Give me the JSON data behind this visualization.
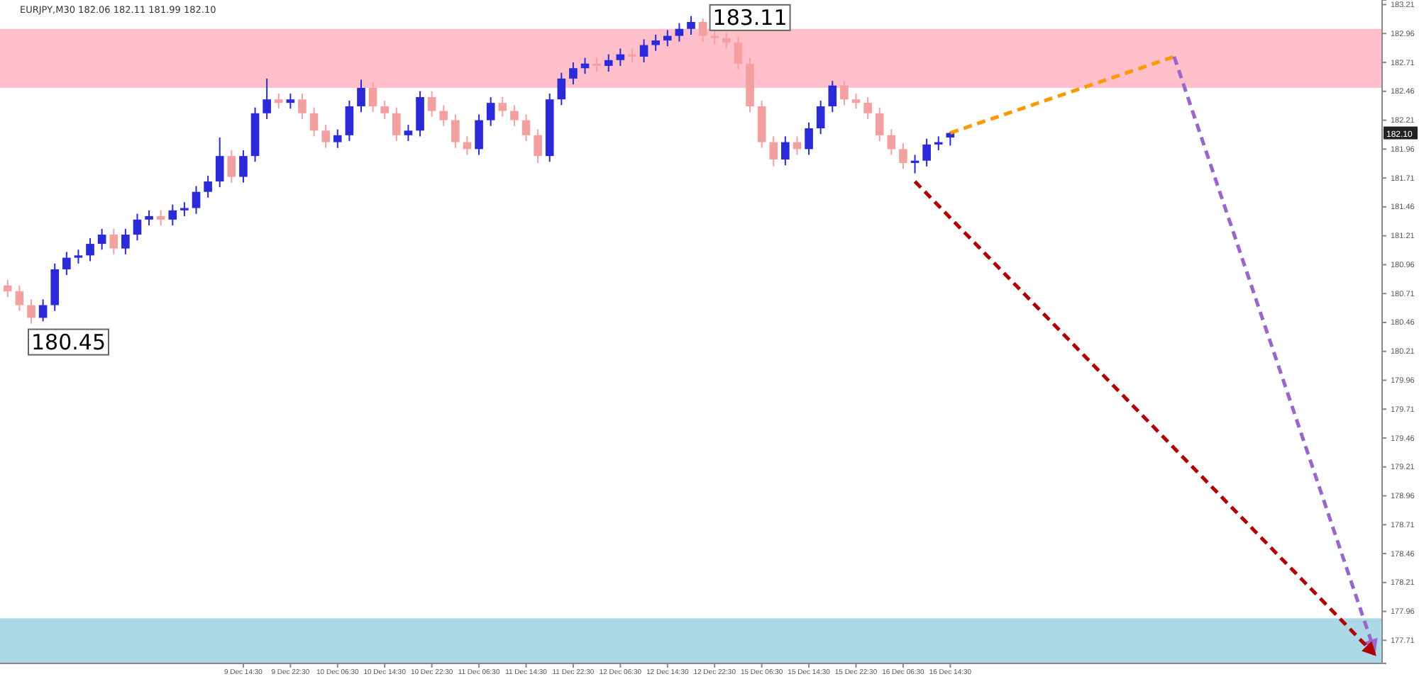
{
  "chart_data": {
    "type": "candlestick",
    "title": "EURJPY,M30  182.06 182.11 181.99 182.10",
    "categories": [
      null,
      null,
      null,
      null,
      null,
      null,
      null,
      null,
      null,
      null,
      null,
      null,
      null,
      null,
      null,
      null,
      null,
      null,
      null,
      null,
      "9 Dec 14:30",
      null,
      null,
      null,
      "9 Dec 22:30",
      null,
      null,
      null,
      "10 Dec 06:30",
      null,
      null,
      null,
      "10 Dec 14:30",
      null,
      null,
      null,
      "10 Dec 22:30",
      null,
      null,
      null,
      "11 Dec 06:30",
      null,
      null,
      null,
      "11 Dec 14:30",
      null,
      null,
      null,
      "11 Dec 22:30",
      null,
      null,
      null,
      "12 Dec 06:30",
      null,
      null,
      null,
      "12 Dec 14:30",
      null,
      null,
      null,
      "12 Dec 22:30",
      null,
      null,
      null,
      "15 Dec 06:30",
      null,
      null,
      null,
      "15 Dec 14:30",
      null,
      null,
      null,
      "15 Dec 22:30",
      null,
      null,
      null,
      "16 Dec 06:30",
      null,
      null,
      null,
      "16 Dec 14:30",
      null,
      null,
      null,
      null,
      null,
      null,
      null,
      null,
      null,
      null,
      null,
      null,
      null,
      null,
      null,
      null,
      null,
      null,
      null,
      null,
      null,
      null,
      null,
      null,
      null,
      null,
      null,
      null,
      null,
      null,
      null,
      null,
      null,
      null,
      null,
      null
    ],
    "ohlc": [
      [
        180.78,
        180.83,
        180.68,
        180.73
      ],
      [
        180.73,
        180.78,
        180.56,
        180.61
      ],
      [
        180.61,
        180.66,
        180.45,
        180.5
      ],
      [
        180.5,
        180.66,
        180.47,
        180.61
      ],
      [
        180.61,
        180.97,
        180.56,
        180.92
      ],
      [
        180.92,
        181.07,
        180.87,
        181.02
      ],
      [
        181.02,
        181.09,
        180.97,
        181.04
      ],
      [
        181.04,
        181.19,
        180.99,
        181.14
      ],
      [
        181.14,
        181.27,
        181.09,
        181.22
      ],
      [
        181.22,
        181.27,
        181.05,
        181.1
      ],
      [
        181.1,
        181.27,
        181.05,
        181.22
      ],
      [
        181.22,
        181.4,
        181.17,
        181.35
      ],
      [
        181.35,
        181.43,
        181.3,
        181.38
      ],
      [
        181.38,
        181.43,
        181.3,
        181.35
      ],
      [
        181.35,
        181.48,
        181.3,
        181.43
      ],
      [
        181.43,
        181.5,
        181.38,
        181.45
      ],
      [
        181.45,
        181.64,
        181.4,
        181.59
      ],
      [
        181.59,
        181.73,
        181.54,
        181.68
      ],
      [
        181.68,
        182.06,
        181.63,
        181.9
      ],
      [
        181.9,
        181.95,
        181.67,
        181.72
      ],
      [
        181.72,
        181.95,
        181.67,
        181.9
      ],
      [
        181.9,
        182.32,
        181.85,
        182.27
      ],
      [
        182.27,
        182.57,
        182.22,
        182.39
      ],
      [
        182.39,
        182.44,
        182.31,
        182.36
      ],
      [
        182.36,
        182.44,
        182.31,
        182.39
      ],
      [
        182.39,
        182.44,
        182.22,
        182.27
      ],
      [
        182.27,
        182.32,
        182.07,
        182.12
      ],
      [
        182.12,
        182.17,
        181.97,
        182.02
      ],
      [
        182.02,
        182.13,
        181.97,
        182.08
      ],
      [
        182.08,
        182.38,
        182.03,
        182.33
      ],
      [
        182.33,
        182.56,
        182.28,
        182.49
      ],
      [
        182.49,
        182.54,
        182.28,
        182.33
      ],
      [
        182.33,
        182.38,
        182.22,
        182.27
      ],
      [
        182.27,
        182.32,
        182.03,
        182.08
      ],
      [
        182.08,
        182.17,
        182.03,
        182.12
      ],
      [
        182.12,
        182.46,
        182.07,
        182.41
      ],
      [
        182.41,
        182.46,
        182.24,
        182.29
      ],
      [
        182.29,
        182.34,
        182.16,
        182.21
      ],
      [
        182.21,
        182.26,
        181.97,
        182.02
      ],
      [
        182.02,
        182.07,
        181.91,
        181.96
      ],
      [
        181.96,
        182.26,
        181.91,
        182.21
      ],
      [
        182.21,
        182.41,
        182.16,
        182.36
      ],
      [
        182.36,
        182.41,
        182.24,
        182.29
      ],
      [
        182.29,
        182.34,
        182.16,
        182.21
      ],
      [
        182.21,
        182.26,
        182.03,
        182.08
      ],
      [
        182.08,
        182.13,
        181.84,
        181.9
      ],
      [
        181.9,
        182.44,
        181.85,
        182.39
      ],
      [
        182.39,
        182.62,
        182.34,
        182.57
      ],
      [
        182.57,
        182.71,
        182.52,
        182.66
      ],
      [
        182.66,
        182.75,
        182.61,
        182.7
      ],
      [
        182.7,
        182.75,
        182.63,
        182.68
      ],
      [
        182.68,
        182.78,
        182.63,
        182.73
      ],
      [
        182.73,
        182.83,
        182.68,
        182.78
      ],
      [
        182.78,
        182.83,
        182.71,
        182.76
      ],
      [
        182.76,
        182.91,
        182.71,
        182.86
      ],
      [
        182.86,
        182.95,
        182.81,
        182.9
      ],
      [
        182.9,
        182.99,
        182.85,
        182.94
      ],
      [
        182.94,
        183.05,
        182.89,
        183.0
      ],
      [
        183.0,
        183.11,
        182.95,
        183.06
      ],
      [
        183.06,
        183.09,
        182.89,
        182.94
      ],
      [
        182.94,
        182.99,
        182.87,
        182.92
      ],
      [
        182.92,
        182.97,
        182.83,
        182.88
      ],
      [
        182.88,
        182.93,
        182.65,
        182.7
      ],
      [
        182.7,
        182.75,
        182.28,
        182.33
      ],
      [
        182.33,
        182.38,
        181.97,
        182.02
      ],
      [
        182.02,
        182.07,
        181.81,
        181.87
      ],
      [
        181.87,
        182.07,
        181.82,
        182.02
      ],
      [
        182.02,
        182.07,
        181.91,
        181.96
      ],
      [
        181.96,
        182.19,
        181.91,
        182.14
      ],
      [
        182.14,
        182.38,
        182.09,
        182.33
      ],
      [
        182.33,
        182.55,
        182.28,
        182.51
      ],
      [
        182.51,
        182.55,
        182.34,
        182.39
      ],
      [
        182.39,
        182.44,
        182.31,
        182.36
      ],
      [
        182.36,
        182.41,
        182.22,
        182.27
      ],
      [
        182.27,
        182.32,
        182.03,
        182.08
      ],
      [
        182.08,
        182.13,
        181.91,
        181.96
      ],
      [
        181.96,
        182.01,
        181.79,
        181.84
      ],
      [
        181.84,
        181.91,
        181.75,
        181.86
      ],
      [
        181.86,
        182.05,
        181.81,
        182.0
      ],
      [
        182.0,
        182.07,
        181.95,
        182.02
      ],
      [
        182.06,
        182.11,
        181.99,
        182.1
      ],
      null,
      null,
      null,
      null,
      null,
      null,
      null,
      null,
      null,
      null,
      null,
      null,
      null,
      null,
      null,
      null,
      null,
      null,
      null,
      null,
      null,
      null,
      null,
      null,
      null,
      null,
      null,
      null,
      null,
      null,
      null,
      null,
      null,
      null,
      null,
      null
    ],
    "colors": [
      "#f2a0a0",
      "#f2a0a0",
      "#f2a0a0",
      "#2a2ad8",
      "#2a2ad8",
      "#2a2ad8",
      "#2a2ad8",
      "#2a2ad8",
      "#2a2ad8",
      "#f2a0a0",
      "#2a2ad8",
      "#2a2ad8",
      "#2a2ad8",
      "#f2a0a0",
      "#2a2ad8",
      "#2a2ad8",
      "#2a2ad8",
      "#2a2ad8",
      "#2a2ad8",
      "#f2a0a0",
      "#2a2ad8",
      "#2a2ad8",
      "#2a2ad8",
      "#f2a0a0",
      "#2a2ad8",
      "#f2a0a0",
      "#f2a0a0",
      "#f2a0a0",
      "#2a2ad8",
      "#2a2ad8",
      "#2a2ad8",
      "#f2a0a0",
      "#f2a0a0",
      "#f2a0a0",
      "#2a2ad8",
      "#2a2ad8",
      "#f2a0a0",
      "#f2a0a0",
      "#f2a0a0",
      "#f2a0a0",
      "#2a2ad8",
      "#2a2ad8",
      "#f2a0a0",
      "#f2a0a0",
      "#f2a0a0",
      "#f2a0a0",
      "#2a2ad8",
      "#2a2ad8",
      "#2a2ad8",
      "#2a2ad8",
      "#f2a0a0",
      "#2a2ad8",
      "#2a2ad8",
      "#f2a0a0",
      "#2a2ad8",
      "#2a2ad8",
      "#2a2ad8",
      "#2a2ad8",
      "#2a2ad8",
      "#f2a0a0",
      "#f2a0a0",
      "#f2a0a0",
      "#f2a0a0",
      "#f2a0a0",
      "#f2a0a0",
      "#f2a0a0",
      "#2a2ad8",
      "#f2a0a0",
      "#2a2ad8",
      "#2a2ad8",
      "#2a2ad8",
      "#f2a0a0",
      "#f2a0a0",
      "#f2a0a0",
      "#f2a0a0",
      "#f2a0a0",
      "#f2a0a0",
      "#2a2ad8",
      "#2a2ad8",
      "#2a2ad8",
      "#2a2ad8",
      null,
      null,
      null,
      null,
      null,
      null,
      null,
      null,
      null,
      null,
      null,
      null,
      null,
      null,
      null,
      null,
      null,
      null,
      null,
      null,
      null,
      null,
      null,
      null,
      null,
      null,
      null,
      null,
      null,
      null,
      null,
      null,
      null,
      null,
      null,
      null
    ],
    "series": [
      {
        "type": "line",
        "color": "#ff9900",
        "values": [
          null,
          null,
          null,
          null,
          null,
          null,
          null,
          null,
          null,
          null,
          null,
          null,
          null,
          null,
          null,
          null,
          null,
          null,
          null,
          null,
          null,
          null,
          null,
          null,
          null,
          null,
          null,
          null,
          null,
          null,
          null,
          null,
          null,
          null,
          null,
          null,
          null,
          null,
          null,
          null,
          null,
          null,
          null,
          null,
          null,
          null,
          null,
          null,
          null,
          null,
          null,
          null,
          null,
          null,
          null,
          null,
          null,
          null,
          null,
          null,
          null,
          null,
          null,
          null,
          null,
          null,
          null,
          null,
          null,
          null,
          null,
          null,
          null,
          null,
          null,
          null,
          null,
          null,
          null,
          null,
          182.1,
          null,
          null,
          null,
          null,
          null,
          null,
          null,
          null,
          null,
          null,
          null,
          null,
          null,
          null,
          null,
          null,
          null,
          null,
          182.76,
          null,
          null,
          null,
          null,
          null,
          null,
          null,
          null,
          null,
          null,
          null,
          null,
          null,
          null,
          null,
          null,
          null
        ]
      },
      {
        "type": "line",
        "color": "#9966cc",
        "values": [
          null,
          null,
          null,
          null,
          null,
          null,
          null,
          null,
          null,
          null,
          null,
          null,
          null,
          null,
          null,
          null,
          null,
          null,
          null,
          null,
          null,
          null,
          null,
          null,
          null,
          null,
          null,
          null,
          null,
          null,
          null,
          null,
          null,
          null,
          null,
          null,
          null,
          null,
          null,
          null,
          null,
          null,
          null,
          null,
          null,
          null,
          null,
          null,
          null,
          null,
          null,
          null,
          null,
          null,
          null,
          null,
          null,
          null,
          null,
          null,
          null,
          null,
          null,
          null,
          null,
          null,
          null,
          null,
          null,
          null,
          null,
          null,
          null,
          null,
          null,
          null,
          null,
          null,
          null,
          null,
          null,
          null,
          null,
          null,
          null,
          null,
          null,
          null,
          null,
          null,
          null,
          null,
          null,
          null,
          null,
          null,
          null,
          null,
          null,
          182.76,
          null,
          null,
          null,
          null,
          null,
          null,
          null,
          null,
          null,
          null,
          null,
          null,
          null,
          null,
          null,
          null,
          177.62
        ]
      },
      {
        "type": "line",
        "color": "#b00000",
        "values": [
          null,
          null,
          null,
          null,
          null,
          null,
          null,
          null,
          null,
          null,
          null,
          null,
          null,
          null,
          null,
          null,
          null,
          null,
          null,
          null,
          null,
          null,
          null,
          null,
          null,
          null,
          null,
          null,
          null,
          null,
          null,
          null,
          null,
          null,
          null,
          null,
          null,
          null,
          null,
          null,
          null,
          null,
          null,
          null,
          null,
          null,
          null,
          null,
          null,
          null,
          null,
          null,
          null,
          null,
          null,
          null,
          null,
          null,
          null,
          null,
          null,
          null,
          null,
          null,
          null,
          null,
          null,
          null,
          null,
          null,
          null,
          null,
          null,
          null,
          null,
          null,
          null,
          181.68,
          null,
          null,
          null,
          null,
          null,
          null,
          null,
          null,
          null,
          null,
          null,
          null,
          null,
          null,
          null,
          null,
          null,
          null,
          null,
          null,
          null,
          null,
          null,
          null,
          null,
          null,
          null,
          null,
          null,
          null,
          null,
          null,
          null,
          null,
          null,
          null,
          null,
          null,
          177.59
        ]
      }
    ],
    "line_style": "dashed",
    "ylim": [
      177.51,
      183.25
    ],
    "yticks": [
      183.21,
      182.96,
      182.71,
      182.46,
      182.21,
      181.96,
      181.71,
      181.46,
      181.21,
      180.96,
      180.71,
      180.46,
      180.21,
      179.96,
      179.71,
      179.46,
      179.21,
      178.96,
      178.71,
      178.46,
      178.21,
      177.96,
      177.71
    ],
    "bands": [
      {
        "axis": "y",
        "from": 182.49,
        "to": 183.0,
        "color": "#ffc0cb"
      },
      {
        "axis": "y",
        "from": 177.51,
        "to": 177.9,
        "color": "#add8e6"
      }
    ],
    "annotations": [
      "183.11",
      "180.45",
      "182.10"
    ]
  }
}
